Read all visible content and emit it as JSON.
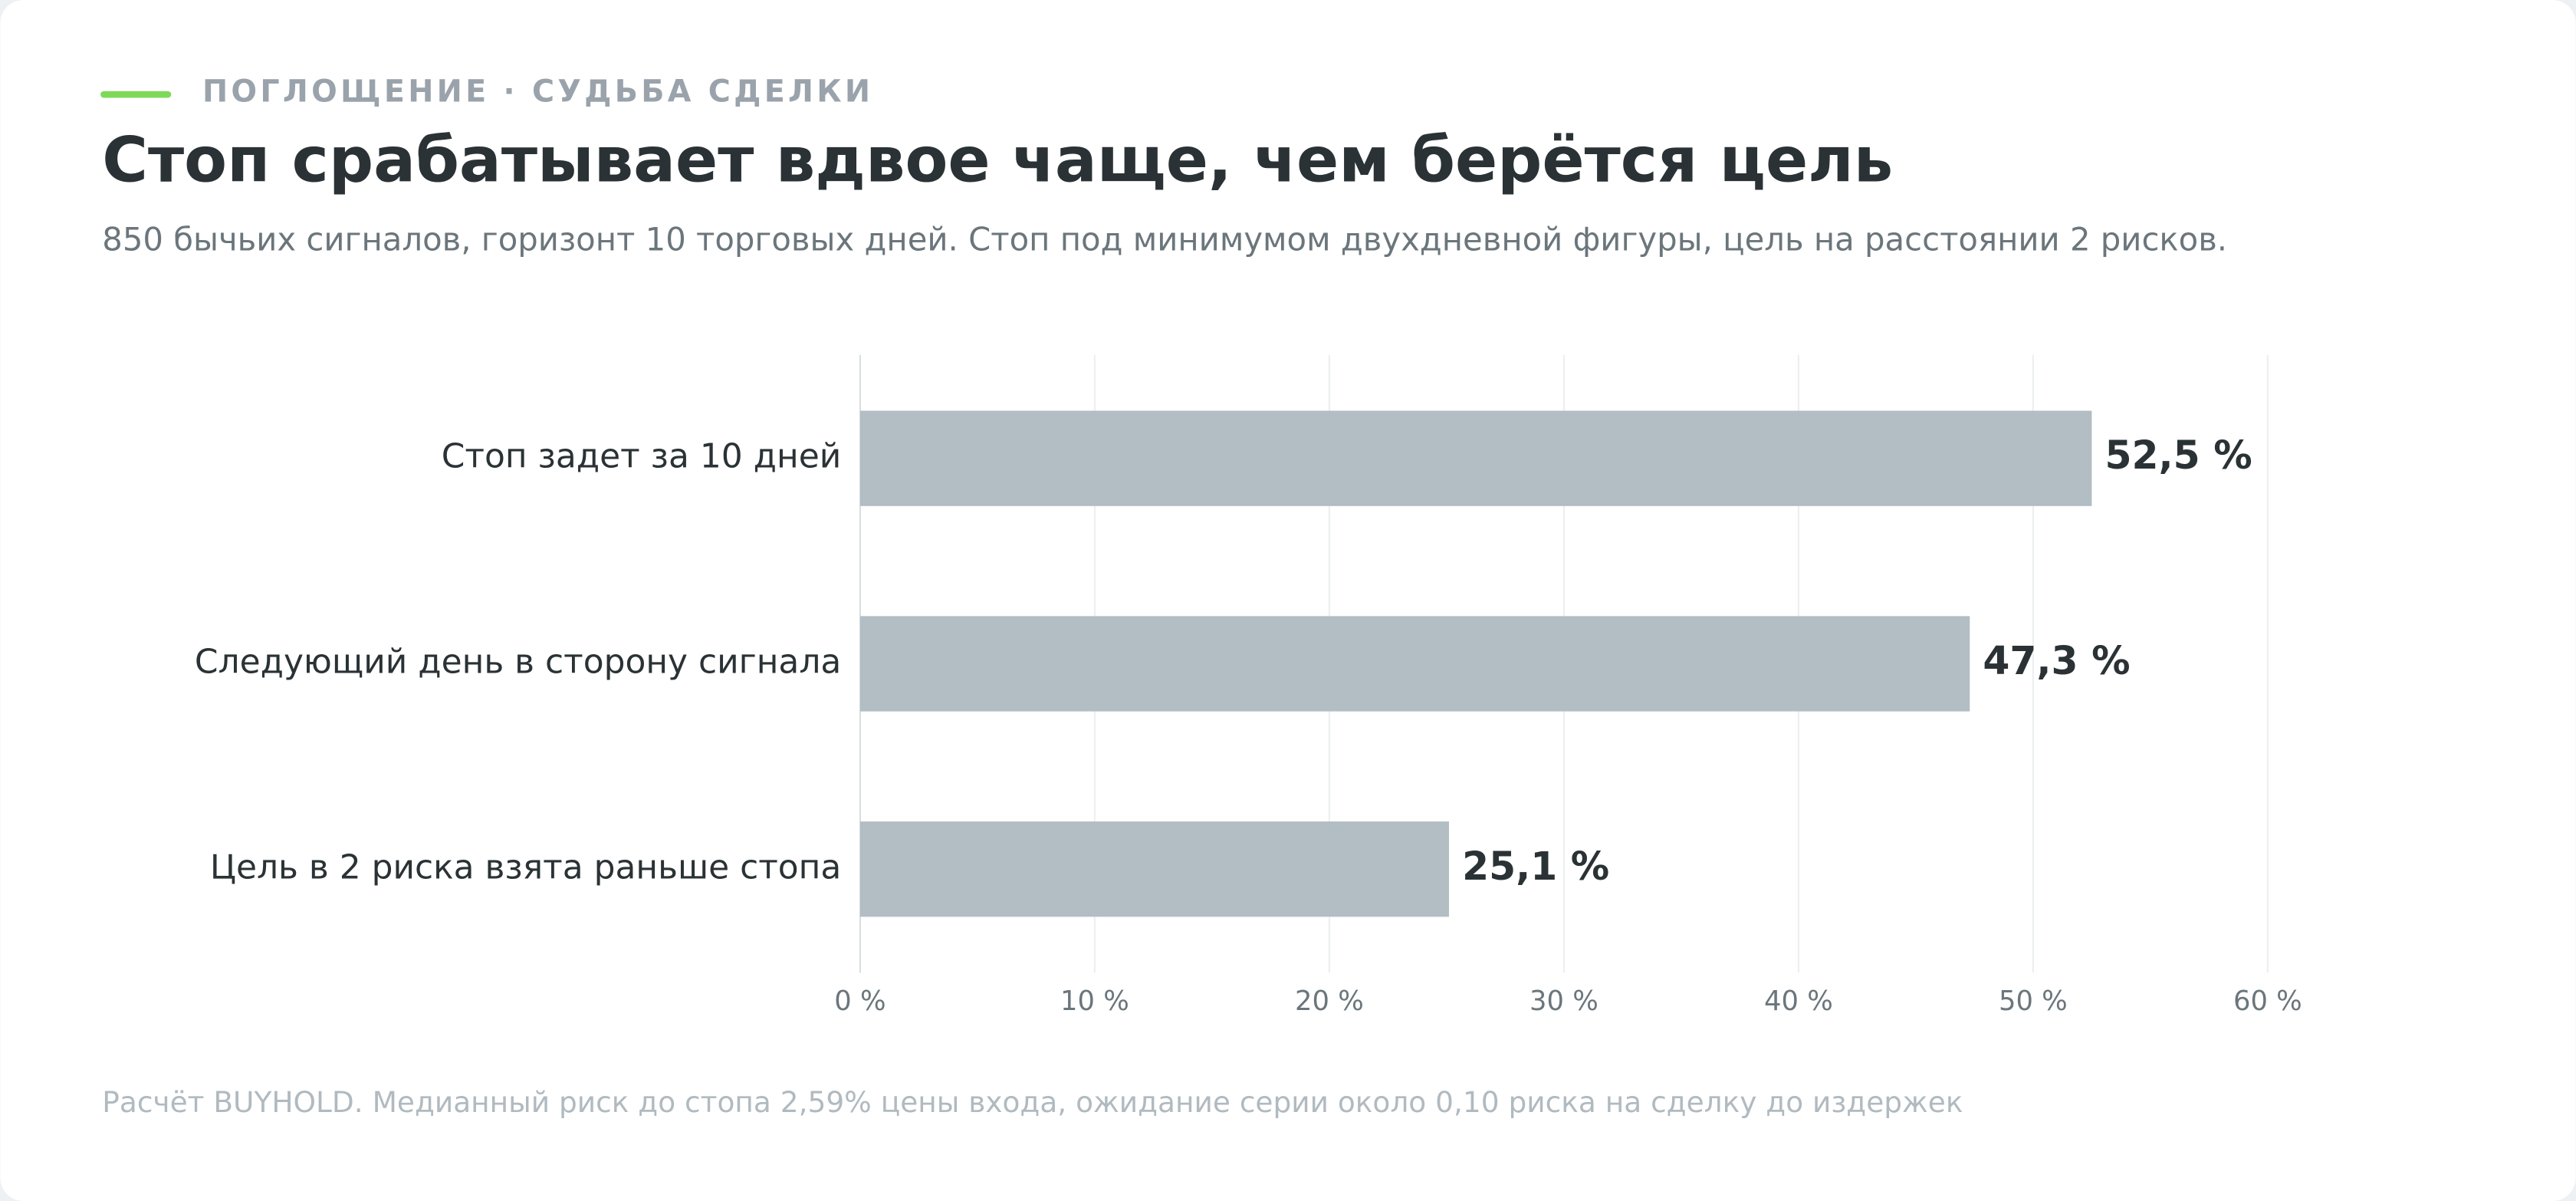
{
  "chart_data": {
    "type": "bar",
    "eyebrow": "ПОГЛОЩЕНИЕ · СУДЬБА СДЕЛКИ",
    "title": "Стоп срабатывает вдвое чаще, чем берётся цель",
    "subtitle": "850 бычьих сигналов, горизонт 10 торговых дней. Стоп под минимумом двухдневной фигуры, цель на расстоянии 2 рисков.",
    "categories": [
      "Стоп задет за 10 дней",
      "Следующий день в сторону сигнала",
      "Цель в 2 риска взята раньше стопа"
    ],
    "values": [
      52.5,
      47.3,
      25.1
    ],
    "value_labels": [
      "52,5 %",
      "47,3 %",
      "25,1 %"
    ],
    "color": "#b2bdc4",
    "xlim": [
      0,
      60
    ],
    "xticks": [
      {
        "value": 0,
        "label": "0 %"
      },
      {
        "value": 10,
        "label": "10 %"
      },
      {
        "value": 20,
        "label": "20 %"
      },
      {
        "value": 30,
        "label": "30 %"
      },
      {
        "value": 40,
        "label": "40 %"
      },
      {
        "value": 50,
        "label": "50 %"
      },
      {
        "value": 60,
        "label": "60 %"
      }
    ],
    "grid": true,
    "footnote": "Расчёт BUYHOLD. Медианный риск до стопа 2,59% цены входа, ожидание серии около 0,10 риска на сделку до издержек"
  }
}
